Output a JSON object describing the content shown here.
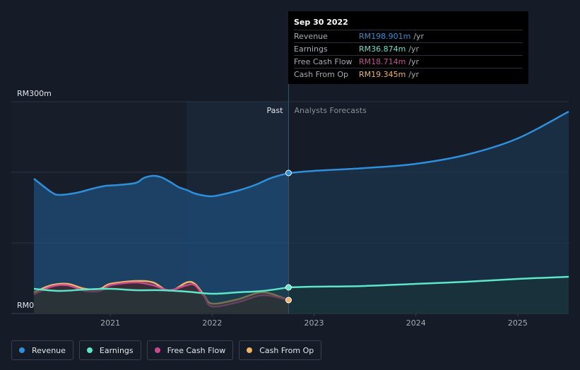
{
  "chart_data": {
    "type": "area",
    "y_axis": {
      "top_label": "RM300m",
      "bottom_label": "RM0",
      "ylim": [
        0,
        300
      ]
    },
    "x_ticks": [
      "2021",
      "2022",
      "2023",
      "2024",
      "2025"
    ],
    "x_tick_values": [
      2021,
      2022,
      2023,
      2024,
      2025
    ],
    "xlim": [
      2020.25,
      2025.5
    ],
    "divider_x": 2022.75,
    "past_label": "Past",
    "forecast_label": "Analysts Forecasts",
    "series": [
      {
        "name": "Revenue",
        "color": "#2e8fdb",
        "fill": "#1d4d78",
        "x": [
          2020.25,
          2020.42,
          2020.5,
          2020.67,
          2020.83,
          2020.96,
          2021.08,
          2021.25,
          2021.33,
          2021.42,
          2021.5,
          2021.58,
          2021.67,
          2021.75,
          2021.83,
          2021.92,
          2022.0,
          2022.08,
          2022.25,
          2022.42,
          2022.58,
          2022.75
        ],
        "values": [
          191,
          172,
          168,
          171,
          177,
          181,
          182,
          185,
          192,
          195,
          193,
          187,
          179,
          175,
          170,
          167,
          166,
          168,
          174,
          182,
          192,
          199
        ],
        "forecast_x": [
          2022.75,
          2023.0,
          2023.5,
          2024.0,
          2024.5,
          2025.0,
          2025.5
        ],
        "forecast_values": [
          199,
          202,
          206,
          212,
          225,
          248,
          286
        ]
      },
      {
        "name": "Earnings",
        "color": "#5ee6c8",
        "fill": "#1c3b3b",
        "x": [
          2020.25,
          2020.5,
          2020.75,
          2021.0,
          2021.25,
          2021.5,
          2021.75,
          2022.0,
          2022.25,
          2022.5,
          2022.75
        ],
        "values": [
          35,
          32,
          34,
          35,
          33,
          33,
          31,
          28,
          30,
          32,
          37
        ],
        "forecast_x": [
          2022.75,
          2023.0,
          2023.5,
          2024.0,
          2024.5,
          2025.0,
          2025.5
        ],
        "forecast_values": [
          37,
          38,
          39,
          42,
          45,
          49,
          52
        ]
      },
      {
        "name": "Free Cash Flow",
        "color": "#c7498e",
        "fill": "#3f2030",
        "x": [
          2020.25,
          2020.42,
          2020.58,
          2020.75,
          2020.9,
          2021.0,
          2021.25,
          2021.42,
          2021.58,
          2021.75,
          2021.83,
          2021.92,
          2022.0,
          2022.25,
          2022.5,
          2022.75
        ],
        "values": [
          27,
          38,
          40,
          32,
          32,
          40,
          44,
          40,
          33,
          40,
          40,
          24,
          10,
          16,
          26,
          19
        ],
        "forecast_x": [],
        "forecast_values": []
      },
      {
        "name": "Cash From Op",
        "color": "#f0b36a",
        "fill": "#4a3525",
        "x": [
          2020.25,
          2020.42,
          2020.58,
          2020.75,
          2020.9,
          2021.0,
          2021.25,
          2021.42,
          2021.58,
          2021.75,
          2021.83,
          2021.92,
          2022.0,
          2022.25,
          2022.5,
          2022.75
        ],
        "values": [
          30,
          40,
          42,
          35,
          35,
          42,
          46,
          44,
          32,
          44,
          42,
          26,
          14,
          20,
          30,
          19
        ],
        "forecast_x": [],
        "forecast_values": []
      }
    ],
    "tooltip": {
      "date": "Sep 30 2022",
      "rows": [
        {
          "label": "Revenue",
          "value": "RM198.901m",
          "unit": "/yr",
          "color": "#2e8fdb"
        },
        {
          "label": "Earnings",
          "value": "RM36.874m",
          "unit": "/yr",
          "color": "#5ee6c8"
        },
        {
          "label": "Free Cash Flow",
          "value": "RM18.714m",
          "unit": "/yr",
          "color": "#d24a91"
        },
        {
          "label": "Cash From Op",
          "value": "RM19.345m",
          "unit": "/yr",
          "color": "#f0b36a"
        }
      ]
    }
  },
  "legend": [
    {
      "label": "Revenue",
      "color": "#2e8fdb"
    },
    {
      "label": "Earnings",
      "color": "#5ee6c8"
    },
    {
      "label": "Free Cash Flow",
      "color": "#c7498e"
    },
    {
      "label": "Cash From Op",
      "color": "#f0b36a"
    }
  ]
}
